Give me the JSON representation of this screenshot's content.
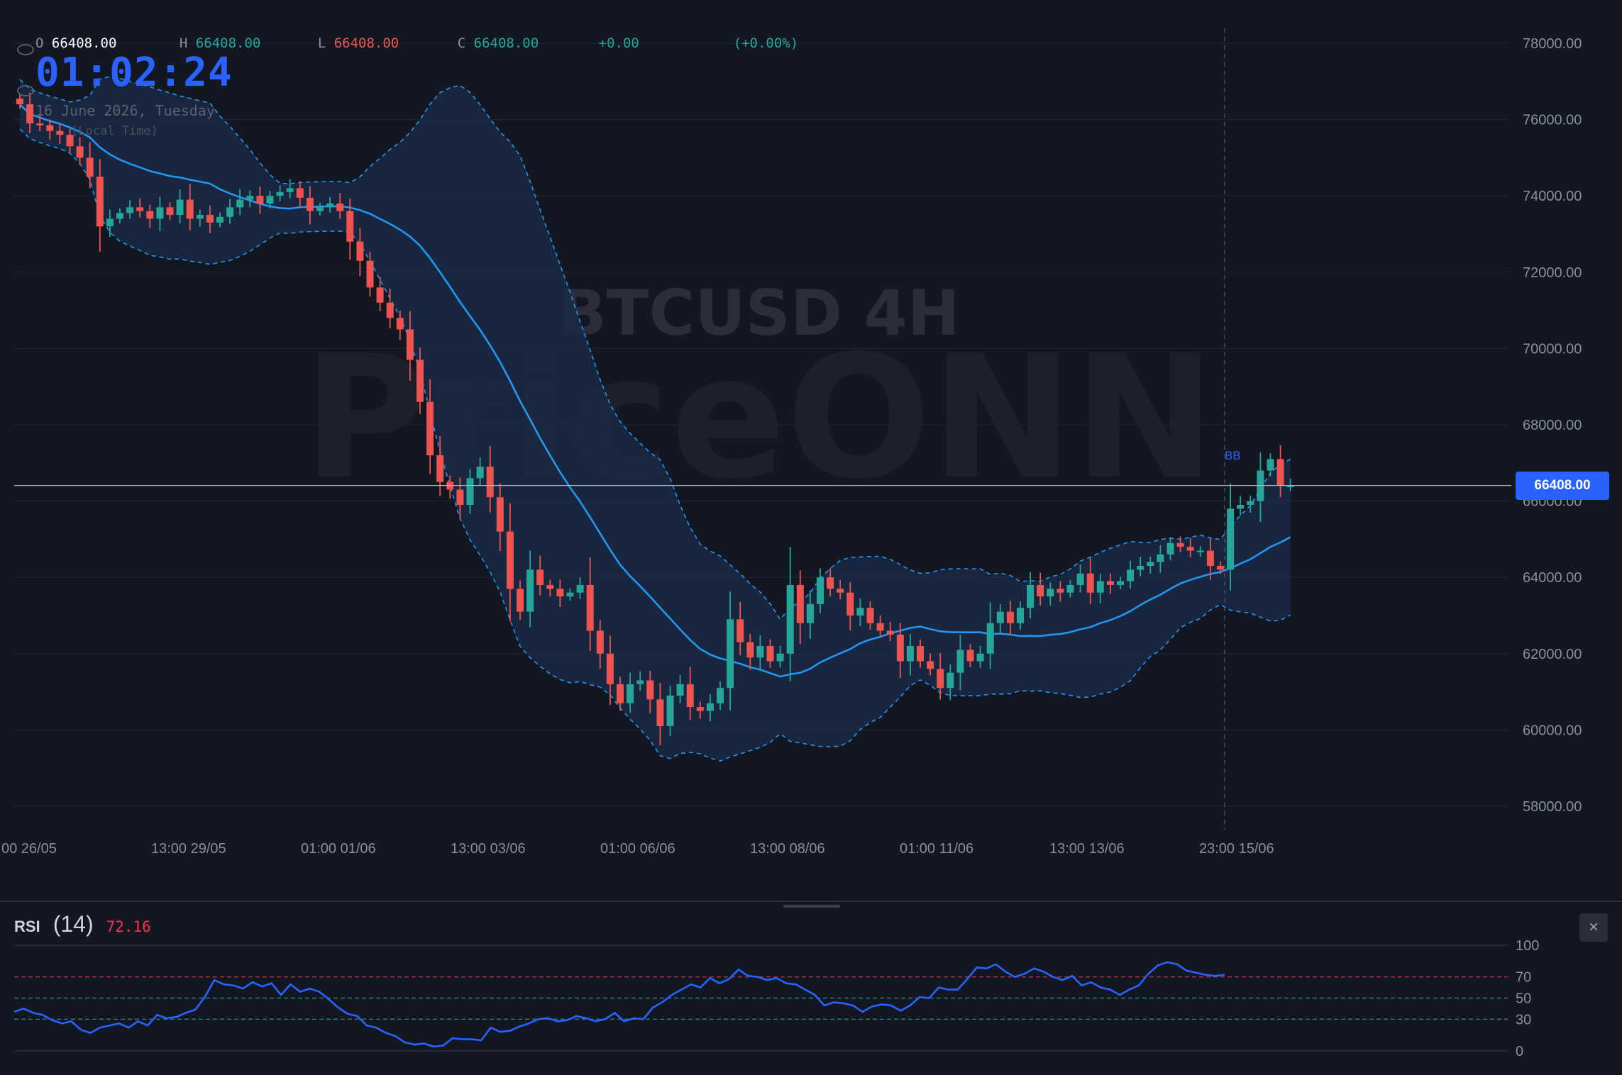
{
  "chart": {
    "symbol_watermark": "BTCUSD 4H",
    "brand_watermark": "PriceONN",
    "ohlc": {
      "o_label": "O",
      "o_value": "66408.00",
      "h_label": "H",
      "h_value": "66408.00",
      "l_label": "L",
      "l_value": "66408.00",
      "c_label": "C",
      "c_value": "66408.00",
      "change": "+0.00",
      "change_pct": "(+0.00%)"
    },
    "clock": "01:02:24",
    "date": "16 June 2026, Tuesday",
    "timezone": "(Local Time)",
    "last_price": "66408.00",
    "indicator_label": "BB",
    "y_ticks": [
      "78000.00",
      "76000.00",
      "74000.00",
      "72000.00",
      "70000.00",
      "68000.00",
      "66000.00",
      "64000.00",
      "62000.00",
      "60000.00",
      "58000.00"
    ],
    "x_ticks": [
      "00 26/05",
      "13:00 29/05",
      "01:00 01/06",
      "13:00 03/06",
      "01:00 06/06",
      "13:00 08/06",
      "01:00 11/06",
      "13:00 13/06",
      "23:00 15/06"
    ],
    "colors": {
      "background": "#131722",
      "up": "#26a69a",
      "down": "#ef5350",
      "bb_line": "#2196f3",
      "bb_fill": "#1a2a44",
      "badge": "#2962ff",
      "rsi_line": "#2962ff",
      "rsi_overbought": "#f23645",
      "rsi_mid": "#26a69a"
    }
  },
  "rsi": {
    "name": "RSI",
    "period": "(14)",
    "value": "72.16",
    "ticks": [
      "100",
      "70",
      "50",
      "30",
      "0"
    ],
    "close_icon": "×"
  },
  "chart_data": {
    "type": "candlestick",
    "ylim": [
      57000,
      78500
    ],
    "closes": [
      76400,
      75900,
      75850,
      75700,
      75600,
      75300,
      75000,
      74500,
      73200,
      73400,
      73550,
      73700,
      73600,
      73400,
      73700,
      73500,
      73900,
      73400,
      73500,
      73300,
      73450,
      73700,
      73900,
      74000,
      73800,
      74000,
      74100,
      74200,
      73950,
      73600,
      73700,
      73800,
      73600,
      72800,
      72300,
      71600,
      71200,
      70800,
      70500,
      69700,
      68600,
      67200,
      66500,
      66300,
      65900,
      66600,
      66900,
      66100,
      65200,
      63700,
      63100,
      64200,
      63800,
      63700,
      63500,
      63600,
      63800,
      62600,
      62000,
      61200,
      60700,
      61200,
      61300,
      60800,
      60100,
      60900,
      61200,
      60600,
      60500,
      60700,
      61100,
      62900,
      62300,
      61900,
      62200,
      61800,
      62000,
      63800,
      62800,
      63300,
      64000,
      63700,
      63600,
      63000,
      63200,
      62800,
      62600,
      62500,
      61800,
      62200,
      61800,
      61600,
      61100,
      61500,
      62100,
      61800,
      62000,
      62800,
      63100,
      62800,
      63200,
      63800,
      63500,
      63700,
      63600,
      63800,
      64100,
      63600,
      63900,
      63800,
      63900,
      64200,
      64300,
      64400,
      64600,
      64900,
      64800,
      64700,
      64700,
      64300,
      64200,
      65800,
      65900,
      66000,
      66800,
      67100,
      66400,
      66400
    ],
    "rsi_values": [
      37,
      40,
      36,
      34,
      29,
      26,
      28,
      20,
      17,
      22,
      24,
      26,
      22,
      28,
      24,
      34,
      31,
      32,
      36,
      39,
      51,
      67,
      63,
      62,
      59,
      65,
      61,
      64,
      53,
      63,
      56,
      59,
      56,
      49,
      41,
      35,
      33,
      24,
      22,
      17,
      14,
      8,
      6,
      7,
      4,
      5,
      12,
      11,
      11,
      10,
      22,
      18,
      19,
      23,
      26,
      30,
      31,
      28,
      29,
      33,
      31,
      28,
      30,
      36,
      28,
      31,
      30,
      41,
      46,
      53,
      58,
      63,
      60,
      69,
      64,
      68,
      77,
      71,
      70,
      67,
      69,
      64,
      63,
      58,
      53,
      43,
      46,
      45,
      43,
      37,
      42,
      44,
      43,
      38,
      43,
      51,
      50,
      60,
      58,
      58,
      68,
      79,
      78,
      82,
      75,
      70,
      73,
      78,
      75,
      70,
      67,
      71,
      62,
      65,
      60,
      58,
      53,
      58,
      62,
      73,
      81,
      84,
      82,
      76,
      74,
      72,
      71,
      72
    ]
  }
}
